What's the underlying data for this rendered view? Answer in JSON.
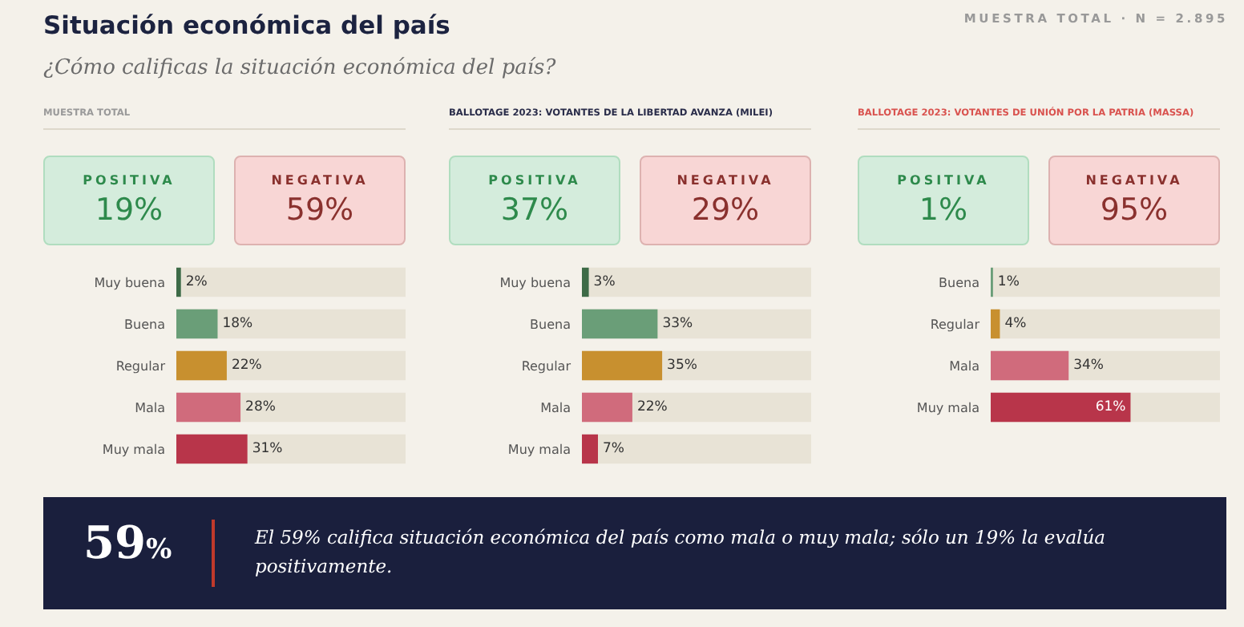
{
  "chart_data": [
    {
      "type": "other",
      "title": "Situación económica del país",
      "subtitle": "¿Cómo calificas la situación económica del país?",
      "annotations": [
        "MUESTRA TOTAL · N = 2.895"
      ]
    },
    {
      "type": "other",
      "title": "MUESTRA TOTAL",
      "categories": [
        "POSITIVA",
        "NEGATIVA"
      ],
      "values": [
        19,
        59
      ],
      "value_labels": [
        "19%",
        "59%"
      ],
      "colors": [
        "#d4ecdc",
        "#f8d6d5"
      ]
    },
    {
      "type": "bar",
      "orientation": "horizontal",
      "categories": [
        "Muy buena",
        "Buena",
        "Regular",
        "Mala",
        "Muy mala"
      ],
      "values": [
        2,
        18,
        22,
        28,
        31
      ],
      "value_labels": [
        "2%",
        "18%",
        "22%",
        "28%",
        "31%"
      ],
      "colors": [
        "#3d6b47",
        "#6a9e78",
        "#c8902f",
        "#d06b7c",
        "#b8354a"
      ],
      "xlim": [
        0,
        100
      ]
    },
    {
      "type": "other",
      "title": "BALLOTAGE 2023: VOTANTES DE LA LIBERTAD AVANZA (MILEI)",
      "categories": [
        "POSITIVA",
        "NEGATIVA"
      ],
      "values": [
        37,
        29
      ],
      "value_labels": [
        "37%",
        "29%"
      ],
      "colors": [
        "#d4ecdc",
        "#f8d6d5"
      ]
    },
    {
      "type": "bar",
      "orientation": "horizontal",
      "categories": [
        "Muy buena",
        "Buena",
        "Regular",
        "Mala",
        "Muy mala"
      ],
      "values": [
        3,
        33,
        35,
        22,
        7
      ],
      "value_labels": [
        "3%",
        "33%",
        "35%",
        "22%",
        "7%"
      ],
      "colors": [
        "#3d6b47",
        "#6a9e78",
        "#c8902f",
        "#d06b7c",
        "#b8354a"
      ],
      "xlim": [
        0,
        100
      ]
    },
    {
      "type": "other",
      "title": "BALLOTAGE 2023: VOTANTES DE UNIÓN POR LA PATRIA (MASSA)",
      "categories": [
        "POSITIVA",
        "NEGATIVA"
      ],
      "values": [
        1,
        95
      ],
      "value_labels": [
        "1%",
        "95%"
      ],
      "colors": [
        "#d4ecdc",
        "#f8d6d5"
      ]
    },
    {
      "type": "bar",
      "orientation": "horizontal",
      "categories": [
        "Buena",
        "Regular",
        "Mala",
        "Muy mala"
      ],
      "values": [
        1,
        4,
        34,
        61
      ],
      "value_labels": [
        "1%",
        "4%",
        "34%",
        "61%"
      ],
      "colors": [
        "#6a9e78",
        "#c8902f",
        "#d06b7c",
        "#b8354a"
      ],
      "xlim": [
        0,
        100
      ]
    },
    {
      "type": "other",
      "values": [
        59
      ],
      "value_labels": [
        "59%"
      ],
      "annotations": [
        "El 59% califica situación económica del país como mala o muy mala; sólo un 19% la evalúa positivamente."
      ]
    }
  ]
}
